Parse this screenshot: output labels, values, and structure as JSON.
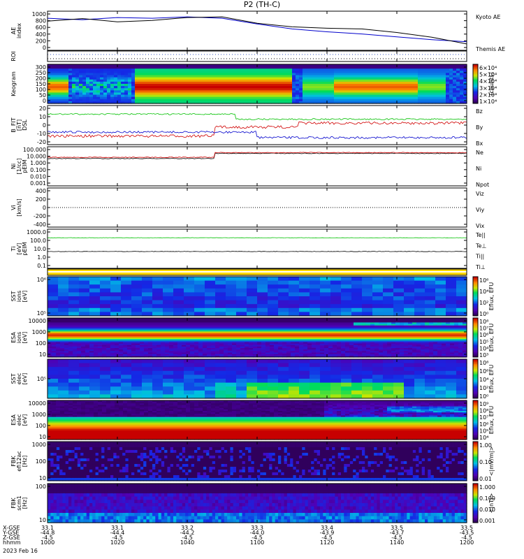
{
  "title": "P2 (TH-C)",
  "date_label": "2023 Feb 16",
  "colors": {
    "red": "#d00000",
    "green": "#00c000",
    "blue": "#0000cc",
    "black": "#000000",
    "yellow": "#ffd800"
  },
  "panels": [
    {
      "id": "ae",
      "ylabel": "AE index",
      "yticks": [
        "1000",
        "800",
        "600",
        "400",
        "200",
        "0"
      ],
      "legend": [
        {
          "text": "Kyoto AE",
          "color": "#0000cc"
        },
        {
          "text": "Themis AE",
          "color": "#000000"
        }
      ]
    },
    {
      "id": "roi",
      "ylabel": "ROI",
      "yticks": [],
      "legend": []
    },
    {
      "id": "keogram",
      "ylabel": "Keogram",
      "yticks": [
        "300",
        "250",
        "200",
        "150",
        "100",
        "50",
        "0"
      ],
      "colorbar": {
        "ticks": [
          "6×10⁴",
          "5×10⁴",
          "4×10⁴",
          "3×10⁴",
          "2×10⁴",
          "1×10⁴"
        ],
        "unit": "[counts]"
      }
    },
    {
      "id": "bfit",
      "ylabel": "B_FIT [nT] DSL",
      "yticks": [
        "20",
        "10",
        "0",
        "-10",
        "-20"
      ],
      "legend": [
        {
          "text": "Bz",
          "color": "#d00000"
        },
        {
          "text": "By",
          "color": "#00c000"
        },
        {
          "text": "Bx",
          "color": "#0000cc"
        }
      ]
    },
    {
      "id": "ni",
      "ylabel": "Ni [1/cc] pEIM",
      "yticks": [
        "100.000",
        "10.000",
        "1.000",
        "0.100",
        "0.010",
        "0.001"
      ],
      "legend": [
        {
          "text": "Ne",
          "color": "#d00000"
        },
        {
          "text": "Ni",
          "color": "#000000"
        },
        {
          "text": "Npot",
          "color": "#0000cc"
        }
      ]
    },
    {
      "id": "vi",
      "ylabel": "Vi [km/s]",
      "yticks": [
        "400",
        "200",
        "0",
        "-200",
        "-400"
      ],
      "legend": [
        {
          "text": "Viz",
          "color": "#d00000"
        },
        {
          "text": "Viy",
          "color": "#00c000"
        },
        {
          "text": "Vix",
          "color": "#0000cc"
        }
      ]
    },
    {
      "id": "ti",
      "ylabel": "Ti [eV] pEIM",
      "yticks": [
        "1000.0",
        "100.0",
        "10.0",
        "1.0",
        "0.1"
      ],
      "legend": [
        {
          "text": "Te||",
          "color": "#000000"
        },
        {
          "text": "Te⊥",
          "color": "#d00000"
        },
        {
          "text": "Ti||",
          "color": "#00c000"
        },
        {
          "text": "Ti⊥",
          "color": "#0000cc"
        }
      ]
    },
    {
      "id": "sst_i",
      "ylabel": "SST ions [eV]",
      "yticks": [
        "10⁶",
        "10⁵"
      ],
      "colorbar": {
        "ticks": [
          "10⁶",
          "10⁴",
          "10²",
          "10⁰"
        ],
        "unit": "Eflux, EFU"
      }
    },
    {
      "id": "esa_i",
      "ylabel": "ESA ions [eV]",
      "yticks": [
        "10000",
        "1000",
        "100",
        "10"
      ],
      "colorbar": {
        "ticks": [
          "10⁸",
          "10⁷",
          "10⁶",
          "10⁵",
          "10⁴",
          "10³"
        ],
        "unit": "Eflux, EFU"
      }
    },
    {
      "id": "sst_e",
      "ylabel": "SST elec [eV]",
      "yticks": [
        "10⁵"
      ],
      "colorbar": {
        "ticks": [
          "10⁸",
          "10⁶",
          "10⁴",
          "10²",
          "10⁰"
        ],
        "unit": "Eflux, EFU"
      }
    },
    {
      "id": "esa_e",
      "ylabel": "ESA elec [eV]",
      "yticks": [
        "10000",
        "1000",
        "100",
        "10"
      ],
      "colorbar": {
        "ticks": [
          "10⁹",
          "10⁸",
          "10⁷",
          "10⁶",
          "10⁵",
          "10⁴"
        ],
        "unit": "Eflux, EFU"
      }
    },
    {
      "id": "fbk_e",
      "ylabel": "FBK efi12ac [Hz]",
      "yticks": [
        "1000",
        "100",
        "10"
      ],
      "colorbar": {
        "ticks": [
          "1.00",
          "0.10",
          "0.01"
        ],
        "unit": "<|mV/m|>"
      }
    },
    {
      "id": "fbk_b",
      "ylabel": "FBK scm1 [Hz]",
      "yticks": [
        "100",
        "10"
      ],
      "colorbar": {
        "ticks": [
          "1.000",
          "0.100",
          "0.010",
          "0.001"
        ],
        "unit": "<|nT|>"
      }
    }
  ],
  "footer": {
    "row_labels": [
      "X-GSE",
      "Y-GSE",
      "Z-GSE",
      "hhmm"
    ],
    "columns": [
      {
        "x": "33.1",
        "y": "-44.8",
        "z": "-4.5",
        "t": "1000"
      },
      {
        "x": "33.1",
        "y": "-44.4",
        "z": "-4.5",
        "t": "1020"
      },
      {
        "x": "33.2",
        "y": "-44.2",
        "z": "-4.5",
        "t": "1040"
      },
      {
        "x": "33.3",
        "y": "-44.0",
        "z": "-4.5",
        "t": "1100"
      },
      {
        "x": "33.4",
        "y": "-43.9",
        "z": "-4.5",
        "t": "1120"
      },
      {
        "x": "33.5",
        "y": "-43.7",
        "z": "-4.5",
        "t": "1140"
      },
      {
        "x": "33.5",
        "y": "-43.5",
        "z": "-4.5",
        "t": "1200"
      }
    ]
  },
  "chart_data": {
    "type": "line",
    "title": "P2 (TH-C)",
    "x_ticks": [
      "1000",
      "1020",
      "1040",
      "1100",
      "1120",
      "1140",
      "1200"
    ],
    "series": [
      {
        "name": "Kyoto AE",
        "x": [
          1000,
          1010,
          1020,
          1030,
          1040,
          1050,
          1100,
          1110,
          1120,
          1130,
          1140,
          1150,
          1200
        ],
        "values": [
          860,
          820,
          880,
          860,
          900,
          860,
          700,
          560,
          480,
          420,
          340,
          260,
          200
        ]
      },
      {
        "name": "Themis AE",
        "x": [
          1000,
          1010,
          1020,
          1030,
          1040,
          1050,
          1100,
          1110,
          1120,
          1130,
          1140,
          1150,
          1200
        ],
        "values": [
          780,
          850,
          760,
          800,
          880,
          900,
          720,
          620,
          580,
          560,
          460,
          330,
          140
        ]
      }
    ],
    "ylabel": "AE index",
    "ylim": [
      0,
      1000
    ]
  }
}
